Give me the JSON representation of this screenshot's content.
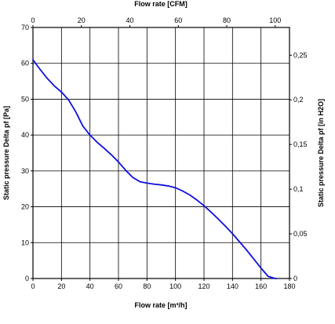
{
  "chart_data": {
    "type": "line",
    "title": "",
    "grid": true,
    "x_bottom": {
      "label": "Flow rate [m³/h]",
      "range": [
        0,
        180
      ],
      "ticks": [
        0,
        20,
        40,
        60,
        80,
        100,
        120,
        140,
        160,
        180
      ]
    },
    "x_top": {
      "label": "Flow rate [CFM]",
      "range": [
        0,
        105.9
      ],
      "ticks": [
        0,
        20,
        40,
        60,
        80,
        100
      ]
    },
    "y_left": {
      "label": "Static pressure Delta pf [Pa]",
      "range": [
        0,
        70
      ],
      "ticks": [
        0,
        10,
        20,
        30,
        40,
        50,
        60,
        70
      ]
    },
    "y_right": {
      "label": "Static pressure Delta pf [in H2O]",
      "range": [
        0,
        0.281
      ],
      "ticks": [
        "0",
        "0,05",
        "0,1",
        "0,15",
        "0,2",
        "0,25"
      ],
      "tick_values": [
        0,
        0.05,
        0.1,
        0.15,
        0.2,
        0.25
      ]
    },
    "series": [
      {
        "color": "#1010e0",
        "x": [
          0,
          5,
          10,
          15,
          20,
          25,
          30,
          35,
          40,
          45,
          50,
          55,
          60,
          65,
          70,
          75,
          80,
          85,
          90,
          95,
          100,
          105,
          110,
          115,
          120,
          125,
          130,
          135,
          140,
          145,
          150,
          155,
          160,
          165,
          170,
          171
        ],
        "y": [
          61,
          58.3,
          55.8,
          53.7,
          52,
          49.8,
          46.5,
          42.5,
          40,
          38,
          36.3,
          34.5,
          32.5,
          30.2,
          28.2,
          27,
          26.6,
          26.3,
          26.1,
          25.8,
          25.3,
          24.4,
          23.3,
          21.9,
          20.3,
          18.5,
          16.6,
          14.6,
          12.5,
          10.2,
          7.9,
          5.4,
          2.9,
          0.6,
          0,
          0
        ]
      }
    ]
  }
}
